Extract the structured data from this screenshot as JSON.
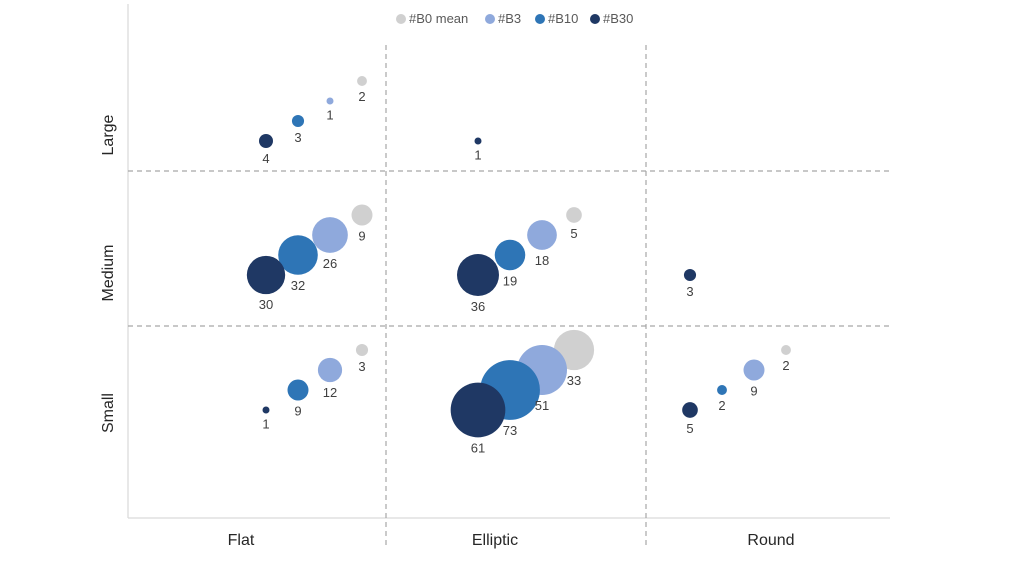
{
  "chart_data": {
    "type": "scatter",
    "subtype": "bubble",
    "x_categories": [
      "Flat",
      "Elliptic",
      "Round"
    ],
    "y_categories": [
      "Small",
      "Medium",
      "Large"
    ],
    "grid": "dashed dividers between categories",
    "legend_position": "top",
    "series": [
      {
        "name": "#B0 mean",
        "color": "#d0d0d0",
        "points": [
          {
            "x": "Flat",
            "y": "Large",
            "value": 2
          },
          {
            "x": "Flat",
            "y": "Medium",
            "value": 9
          },
          {
            "x": "Flat",
            "y": "Small",
            "value": 3
          },
          {
            "x": "Elliptic",
            "y": "Medium",
            "value": 5
          },
          {
            "x": "Elliptic",
            "y": "Small",
            "value": 33
          },
          {
            "x": "Round",
            "y": "Small",
            "value": 2
          }
        ]
      },
      {
        "name": "#B3",
        "color": "#8fa9dc",
        "points": [
          {
            "x": "Flat",
            "y": "Large",
            "value": 1
          },
          {
            "x": "Flat",
            "y": "Medium",
            "value": 26
          },
          {
            "x": "Flat",
            "y": "Small",
            "value": 12
          },
          {
            "x": "Elliptic",
            "y": "Medium",
            "value": 18
          },
          {
            "x": "Elliptic",
            "y": "Small",
            "value": 51
          },
          {
            "x": "Round",
            "y": "Small",
            "value": 9
          }
        ]
      },
      {
        "name": "#B10",
        "color": "#2e75b6",
        "points": [
          {
            "x": "Flat",
            "y": "Large",
            "value": 3
          },
          {
            "x": "Flat",
            "y": "Medium",
            "value": 32
          },
          {
            "x": "Flat",
            "y": "Small",
            "value": 9
          },
          {
            "x": "Elliptic",
            "y": "Medium",
            "value": 19
          },
          {
            "x": "Elliptic",
            "y": "Small",
            "value": 73
          },
          {
            "x": "Round",
            "y": "Small",
            "value": 2
          }
        ]
      },
      {
        "name": "#B30",
        "color": "#1f3864",
        "points": [
          {
            "x": "Flat",
            "y": "Large",
            "value": 4
          },
          {
            "x": "Flat",
            "y": "Medium",
            "value": 30
          },
          {
            "x": "Flat",
            "y": "Small",
            "value": 1
          },
          {
            "x": "Elliptic",
            "y": "Large",
            "value": 1
          },
          {
            "x": "Elliptic",
            "y": "Medium",
            "value": 36
          },
          {
            "x": "Elliptic",
            "y": "Small",
            "value": 61
          },
          {
            "x": "Round",
            "y": "Medium",
            "value": 3
          },
          {
            "x": "Round",
            "y": "Small",
            "value": 5
          }
        ]
      }
    ]
  }
}
